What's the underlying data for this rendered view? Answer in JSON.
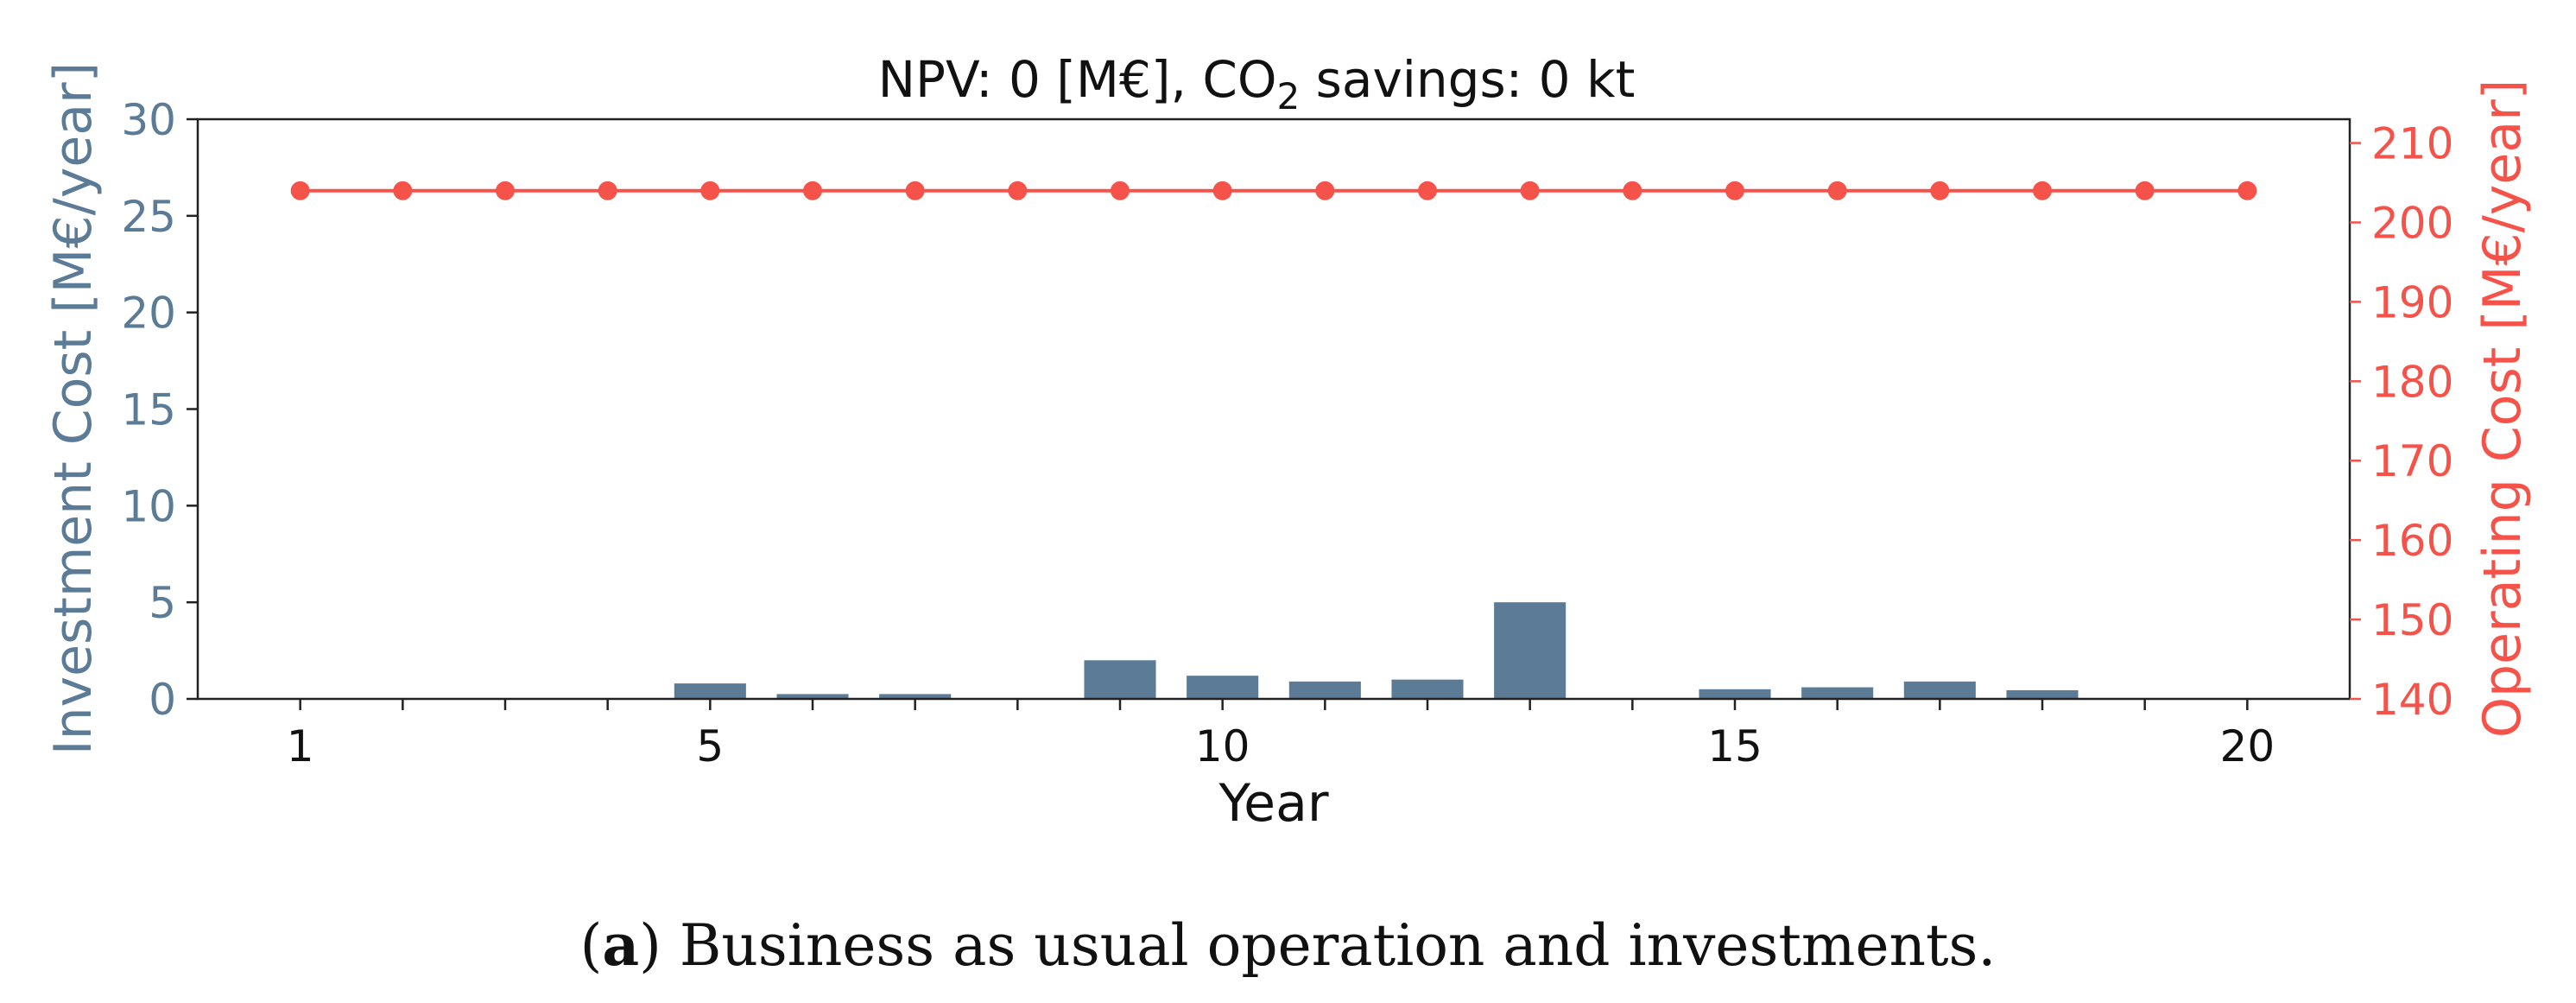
{
  "chart_data": {
    "type": "bar",
    "title_prefix": "NPV: 0 [M€], CO",
    "title_subscript": "2",
    "title_suffix": " savings: 0 kt",
    "xlabel": "Year",
    "x": [
      1,
      2,
      3,
      4,
      5,
      6,
      7,
      8,
      9,
      10,
      11,
      12,
      13,
      14,
      15,
      16,
      17,
      18,
      19,
      20
    ],
    "xticks": [
      "1",
      "5",
      "10",
      "15",
      "20"
    ],
    "xlim": [
      0,
      21
    ],
    "series": [
      {
        "name": "Investment Cost",
        "type": "bar",
        "axis": "left",
        "color": "#5b7b97",
        "values": [
          0,
          0,
          0,
          0,
          0.8,
          0.25,
          0.25,
          0,
          2.0,
          1.2,
          0.9,
          1.0,
          5.0,
          0,
          0.5,
          0.6,
          0.9,
          0.45,
          0,
          0
        ]
      },
      {
        "name": "Operating Cost",
        "type": "line",
        "axis": "right",
        "color": "#f5534a",
        "values": [
          204,
          204,
          204,
          204,
          204,
          204,
          204,
          204,
          204,
          204,
          204,
          204,
          204,
          204,
          204,
          204,
          204,
          204,
          204,
          204
        ]
      }
    ],
    "left_axis": {
      "label": "Investment Cost [M€/year]",
      "ylim": [
        0,
        30
      ],
      "ticks": [
        "0",
        "5",
        "10",
        "15",
        "20",
        "25",
        "30"
      ],
      "color": "#5b7b97"
    },
    "right_axis": {
      "label": "Operating Cost [M€/year]",
      "ylim": [
        140,
        213
      ],
      "ticks": [
        "140",
        "150",
        "160",
        "170",
        "180",
        "190",
        "200",
        "210"
      ],
      "color": "#f5534a"
    }
  },
  "caption": {
    "bold": "a",
    "text": " Business as usual operation and investments."
  }
}
